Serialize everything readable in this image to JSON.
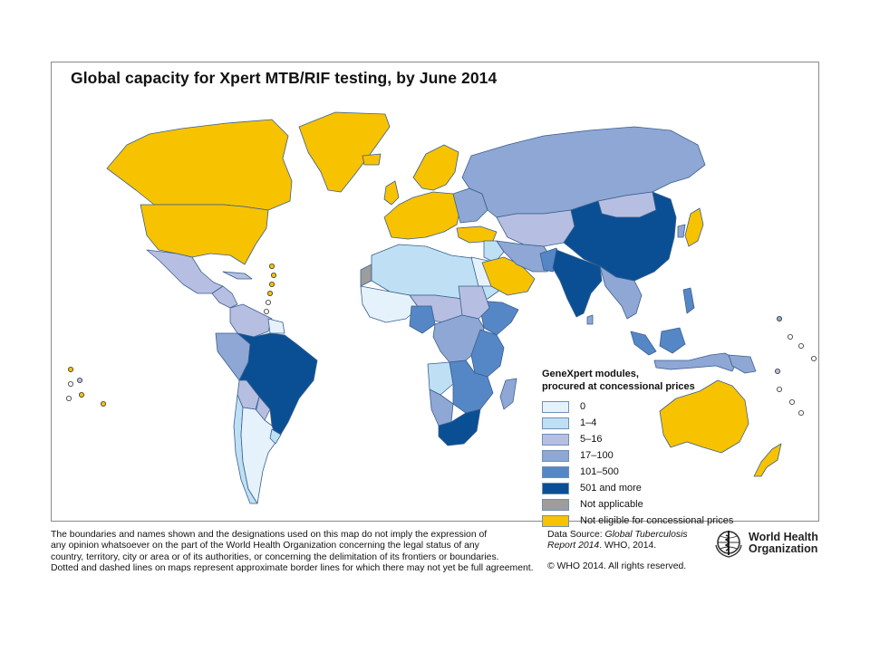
{
  "title": "Global capacity for Xpert MTB/RIF testing, by June 2014",
  "colors": {
    "cat_0": "#e6f2fb",
    "cat_1_4": "#bfe0f4",
    "cat_5_16": "#b6bfe2",
    "cat_17_100": "#8ea7d4",
    "cat_101_500": "#5587c6",
    "cat_501_plus": "#0a4f93",
    "not_applicable": "#9d9d9d",
    "not_eligible": "#f7c200",
    "border": "#3a5f8f",
    "water": "#ffffff"
  },
  "legend": {
    "title_line1": "GeneXpert modules,",
    "title_line2": "procured at concessional prices",
    "items": [
      {
        "label": "0",
        "color": "#e6f2fb"
      },
      {
        "label": "1–4",
        "color": "#bfe0f4"
      },
      {
        "label": "5–16",
        "color": "#b6bfe2"
      },
      {
        "label": "17–100",
        "color": "#8ea7d4"
      },
      {
        "label": "101–500",
        "color": "#5587c6"
      },
      {
        "label": "501 and more",
        "color": "#0a4f93"
      },
      {
        "label": "Not applicable",
        "color": "#9d9d9d"
      },
      {
        "label": "Not eligible for concessional prices",
        "color": "#f7c200"
      }
    ]
  },
  "disclaimer": {
    "line1": "The boundaries and names shown and the designations used on this map do not imply the expression of",
    "line2": "any opinion whatsoever on the part of the World Health Organization concerning the legal status of any",
    "line3": "country, territory, city or area or of its authorities, or concerning the delimitation of its frontiers or boundaries.",
    "line4": "Dotted and dashed lines on maps represent approximate border lines for which there may not yet be full agreement."
  },
  "source": {
    "prefix": "Data Source: ",
    "italic1": "Global Tuberculosis",
    "italic2": "Report 2014",
    "suffix": ". WHO, 2014."
  },
  "copyright": "© WHO 2014. All rights reserved.",
  "who_logo": {
    "line1": "World Health",
    "line2": "Organization",
    "icon": "who-emblem-icon"
  }
}
